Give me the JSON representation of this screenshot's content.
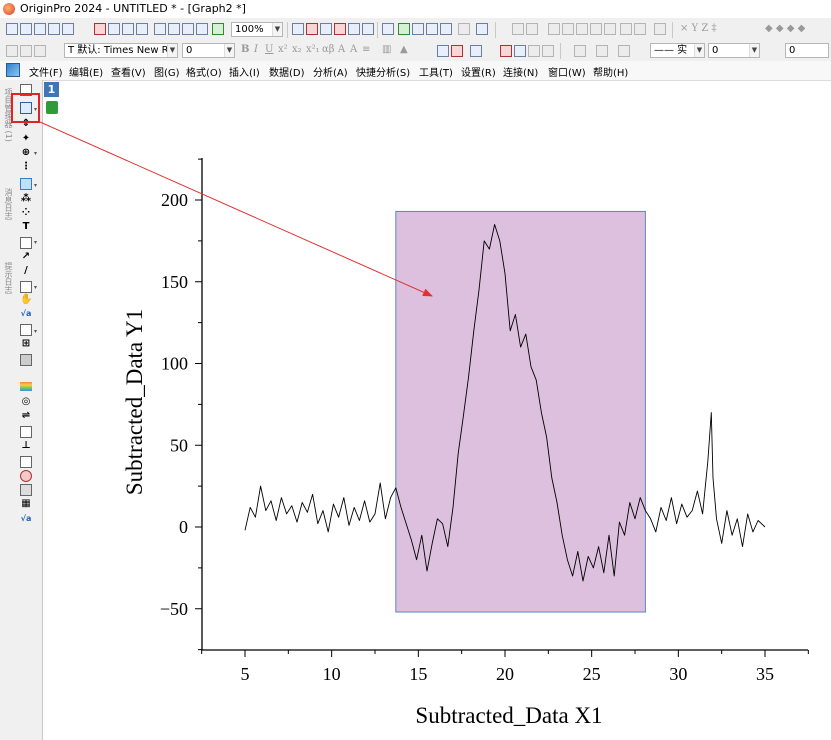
{
  "window": {
    "title": "OriginPro 2024 - UNTITLED * - [Graph2 *]"
  },
  "toolbar": {
    "zoom_value": "100%",
    "font_name": "T 默认: Times New R",
    "font_size": "0",
    "line_style": "—— 实",
    "line_width": "0",
    "spin_value": "0",
    "greek_glyphs": "×  Y  Z  ‡"
  },
  "menu": {
    "items": [
      "文件(F)",
      "编辑(E)",
      "查看(V)",
      "图(G)",
      "格式(O)",
      "插入(I)",
      "数据(D)",
      "分析(A)",
      "快捷分析(S)",
      "工具(T)",
      "设置(R)",
      "连接(N)",
      "窗口(W)",
      "帮助(H)"
    ]
  },
  "left_panel": {
    "tabs": [
      "项目管理器 (1)",
      "消息日志",
      "提示日志"
    ]
  },
  "graph": {
    "layer_label": "1",
    "icons": {
      "layer": "layer-icon",
      "lock": "lock-icon",
      "zoom_tool": "zoom-in-tool-icon"
    },
    "colors": {
      "selection_fill": "#dcc0de",
      "selection_border": "#5b86c5",
      "arrow": "#e03030",
      "highlight": "#e02424"
    }
  },
  "chart_data": {
    "type": "line",
    "xlabel": "Subtracted_Data X1",
    "ylabel": "Subtracted_Data Y1",
    "xlim": [
      2.5,
      37.5
    ],
    "ylim": [
      -75,
      225
    ],
    "x_ticks": [
      5,
      10,
      15,
      20,
      25,
      30,
      35
    ],
    "y_ticks": [
      -50,
      0,
      50,
      100,
      150,
      200
    ],
    "selection_x": [
      13.7,
      28.1
    ],
    "selection_y": [
      -52,
      193
    ],
    "series": [
      {
        "x": [
          5.0,
          5.3,
          5.6,
          5.9,
          6.2,
          6.5,
          6.8,
          7.1,
          7.4,
          7.7,
          8.0,
          8.3,
          8.6,
          8.9,
          9.2,
          9.5,
          9.8,
          10.1,
          10.4,
          10.7,
          11.0,
          11.3,
          11.6,
          11.9,
          12.2,
          12.5,
          12.8,
          13.1,
          13.4,
          13.7,
          14.0,
          14.3,
          14.6,
          14.9,
          15.2,
          15.5,
          15.8,
          16.1,
          16.4,
          16.7,
          17.0,
          17.3,
          17.6,
          17.9,
          18.2,
          18.5,
          18.8,
          19.1,
          19.4,
          19.7,
          20.0,
          20.3,
          20.6,
          20.9,
          21.2,
          21.5,
          21.8,
          22.1,
          22.4,
          22.7,
          23.0,
          23.3,
          23.6,
          23.9,
          24.2,
          24.5,
          24.8,
          25.1,
          25.4,
          25.7,
          26.0,
          26.3,
          26.6,
          26.9,
          27.2,
          27.5,
          27.8,
          28.1,
          28.4,
          28.7,
          29.0,
          29.3,
          29.6,
          29.9,
          30.2,
          30.5,
          30.8,
          31.1,
          31.4,
          31.7,
          31.9,
          32.0,
          32.2,
          32.5,
          32.8,
          33.1,
          33.4,
          33.7,
          34.0,
          34.3,
          34.6,
          35.0
        ],
        "y": [
          -2,
          12,
          6,
          25,
          10,
          16,
          4,
          18,
          8,
          13,
          3,
          15,
          9,
          20,
          2,
          10,
          -3,
          14,
          6,
          18,
          1,
          12,
          4,
          16,
          3,
          8,
          27,
          5,
          18,
          24,
          12,
          2,
          -8,
          -20,
          -5,
          -27,
          -10,
          5,
          2,
          -12,
          12,
          45,
          68,
          92,
          120,
          145,
          175,
          170,
          185,
          175,
          155,
          120,
          130,
          110,
          118,
          98,
          90,
          70,
          55,
          30,
          15,
          -5,
          -20,
          -30,
          -15,
          -33,
          -18,
          -25,
          -12,
          -28,
          -5,
          -30,
          3,
          -5,
          15,
          5,
          18,
          10,
          5,
          -3,
          12,
          4,
          18,
          2,
          14,
          6,
          10,
          22,
          8,
          40,
          70,
          30,
          5,
          -10,
          10,
          -5,
          5,
          -12,
          8,
          -3,
          4,
          0
        ]
      }
    ]
  }
}
